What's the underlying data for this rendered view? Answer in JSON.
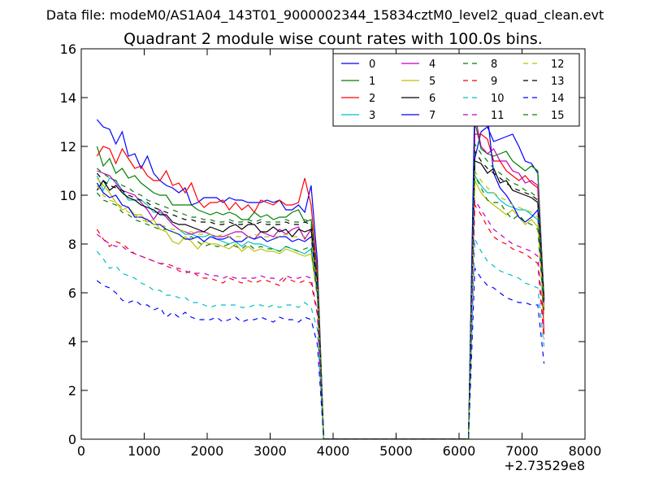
{
  "chart_data": {
    "type": "line",
    "suptitle": "Data file: modeM0/AS1A04_143T01_9000002344_15834cztM0_level2_quad_clean.evt",
    "title": "Quadrant 2 module wise count rates with 100.0s bins.",
    "xlabel": "",
    "ylabel": "",
    "x_offset_label": "+2.73529e8",
    "xlim": [
      0,
      8000
    ],
    "ylim": [
      0,
      16
    ],
    "xticks": [
      0,
      1000,
      2000,
      3000,
      4000,
      5000,
      6000,
      7000,
      8000
    ],
    "yticks": [
      0,
      2,
      4,
      6,
      8,
      10,
      12,
      14,
      16
    ],
    "xtick_labels": [
      "0",
      "1000",
      "2000",
      "3000",
      "4000",
      "5000",
      "6000",
      "7000",
      "8000"
    ],
    "ytick_labels": [
      "0",
      "2",
      "4",
      "6",
      "8",
      "10",
      "12",
      "14",
      "16"
    ],
    "grid": false,
    "legend_position": "top-right",
    "legend_columns": 4,
    "x_segments": {
      "seg1": [
        250,
        350,
        450,
        550,
        650,
        750,
        850,
        950,
        1050,
        1150,
        1250,
        1350,
        1450,
        1550,
        1650,
        1750,
        1850,
        1950,
        2050,
        2150,
        2250,
        2350,
        2450,
        2550,
        2650,
        2750,
        2850,
        2950,
        3050,
        3150,
        3250,
        3350,
        3450,
        3550,
        3650,
        3750
      ],
      "gap": [
        3850,
        6150
      ],
      "seg2": [
        6250,
        6350,
        6450,
        6550,
        6650,
        6750,
        6850,
        6950,
        7050,
        7150,
        7250,
        7350
      ]
    },
    "series": [
      {
        "name": "0",
        "color": "#0000ff",
        "style": "solid",
        "seg1": [
          13.1,
          12.8,
          12.7,
          12.1,
          12.6,
          11.6,
          11.7,
          11.1,
          11.6,
          10.9,
          10.6,
          10.4,
          10.3,
          10.1,
          10.3,
          9.6,
          9.7,
          9.9,
          9.9,
          9.9,
          9.7,
          9.9,
          9.8,
          9.8,
          9.7,
          9.7,
          9.7,
          9.8,
          9.7,
          9.8,
          9.4,
          9.4,
          9.6,
          9.3,
          10.4,
          7.3
        ],
        "seg2": [
          11.5,
          12.6,
          12.8,
          12.2,
          12.3,
          12.4,
          12.5,
          12.0,
          11.4,
          11.3,
          10.9,
          5.5
        ]
      },
      {
        "name": "1",
        "color": "#007f00",
        "style": "solid",
        "seg1": [
          12.0,
          11.2,
          11.5,
          10.9,
          11.1,
          10.7,
          10.8,
          10.5,
          10.3,
          10.1,
          10.0,
          10.0,
          9.6,
          9.6,
          9.6,
          9.6,
          9.4,
          9.3,
          9.2,
          9.3,
          9.2,
          9.3,
          9.2,
          9.0,
          9.0,
          9.3,
          9.1,
          9.2,
          9.0,
          9.1,
          9.1,
          9.3,
          9.4,
          8.9,
          9.0,
          7.0
        ],
        "seg2": [
          13.0,
          11.9,
          11.7,
          11.6,
          11.7,
          11.8,
          11.4,
          11.2,
          11.0,
          11.2,
          11.0,
          5.7
        ]
      },
      {
        "name": "2",
        "color": "#ff0000",
        "style": "solid",
        "seg1": [
          11.6,
          12.0,
          11.9,
          11.3,
          11.9,
          11.5,
          11.1,
          11.2,
          10.8,
          10.6,
          10.6,
          11.0,
          10.4,
          10.5,
          10.1,
          10.5,
          9.8,
          9.5,
          9.7,
          9.7,
          9.8,
          9.4,
          9.7,
          9.4,
          9.6,
          9.3,
          9.8,
          9.7,
          9.6,
          9.8,
          9.6,
          9.6,
          9.7,
          10.7,
          9.6,
          6.8
        ],
        "seg2": [
          12.5,
          12.5,
          12.3,
          11.4,
          11.4,
          11.0,
          10.8,
          10.6,
          10.8,
          10.5,
          10.3,
          4.3
        ]
      },
      {
        "name": "3",
        "color": "#00bfbf",
        "style": "solid",
        "seg1": [
          10.8,
          10.2,
          10.7,
          10.6,
          10.2,
          9.8,
          9.8,
          9.8,
          9.6,
          9.3,
          9.3,
          9.1,
          8.8,
          8.6,
          8.4,
          8.4,
          8.3,
          8.3,
          8.4,
          8.2,
          8.1,
          8.0,
          8.1,
          7.9,
          8.1,
          8.0,
          8.0,
          7.9,
          7.8,
          7.7,
          7.9,
          7.8,
          7.7,
          7.6,
          7.8,
          6.0
        ],
        "seg2": [
          10.8,
          10.4,
          10.1,
          10.1,
          9.8,
          9.6,
          9.5,
          9.4,
          9.4,
          9.2,
          9.0,
          5.3
        ]
      },
      {
        "name": "4",
        "color": "#bf00bf",
        "style": "solid",
        "seg1": [
          11.0,
          10.9,
          10.8,
          10.5,
          10.2,
          10.1,
          10.0,
          9.7,
          9.4,
          9.0,
          9.4,
          9.1,
          8.8,
          8.6,
          8.5,
          8.4,
          8.5,
          8.5,
          8.4,
          8.3,
          8.3,
          8.4,
          8.5,
          8.5,
          8.3,
          8.2,
          8.5,
          8.4,
          8.3,
          8.6,
          8.4,
          8.6,
          8.7,
          8.2,
          8.6,
          6.4
        ],
        "seg2": [
          13.3,
          12.0,
          11.7,
          11.9,
          11.4,
          11.4,
          11.0,
          10.9,
          10.5,
          10.6,
          10.4,
          5.8
        ]
      },
      {
        "name": "5",
        "color": "#bfbf00",
        "style": "solid",
        "seg1": [
          10.7,
          10.4,
          10.1,
          9.7,
          9.4,
          9.5,
          9.2,
          9.2,
          8.9,
          9.0,
          8.6,
          8.5,
          8.1,
          8.0,
          8.3,
          8.1,
          7.8,
          8.1,
          8.0,
          8.0,
          7.9,
          7.8,
          8.0,
          7.7,
          7.9,
          7.7,
          7.8,
          7.7,
          7.7,
          7.6,
          7.8,
          7.7,
          7.6,
          7.5,
          7.6,
          5.9
        ],
        "seg2": [
          10.6,
          10.1,
          9.8,
          9.6,
          9.4,
          9.2,
          9.4,
          9.1,
          8.8,
          9.0,
          8.7,
          5.1
        ]
      },
      {
        "name": "6",
        "color": "#000000",
        "style": "solid",
        "seg1": [
          10.2,
          10.6,
          10.2,
          10.4,
          10.1,
          9.9,
          9.8,
          9.6,
          9.5,
          9.4,
          9.2,
          9.2,
          8.9,
          8.8,
          8.8,
          8.7,
          8.6,
          8.5,
          8.7,
          8.6,
          8.5,
          8.7,
          8.8,
          8.6,
          8.8,
          8.8,
          8.5,
          8.5,
          8.7,
          8.5,
          8.6,
          8.3,
          8.6,
          8.5,
          8.6,
          6.3
        ],
        "seg2": [
          11.4,
          11.3,
          10.9,
          11.1,
          10.5,
          10.6,
          10.2,
          10.1,
          10.0,
          9.9,
          9.7,
          5.7
        ]
      },
      {
        "name": "7",
        "color": "#0000ff",
        "style": "solid",
        "seg1": [
          10.5,
          10.1,
          9.9,
          10.0,
          9.6,
          9.5,
          9.1,
          9.1,
          9.0,
          8.8,
          8.8,
          8.6,
          8.5,
          8.4,
          8.2,
          8.2,
          8.3,
          8.1,
          8.3,
          8.2,
          8.2,
          8.3,
          8.1,
          8.1,
          8.3,
          8.2,
          8.3,
          8.1,
          8.2,
          8.3,
          8.3,
          8.1,
          8.2,
          8.1,
          8.3,
          6.1
        ],
        "seg2": [
          14.0,
          13.5,
          13.3,
          10.9,
          10.3,
          10.0,
          9.6,
          9.1,
          8.9,
          9.1,
          9.4,
          5.4
        ]
      },
      {
        "name": "8",
        "color": "#007f00",
        "style": "dashed",
        "seg1": [
          10.1,
          9.8,
          9.7,
          9.6,
          9.3,
          9.2,
          9.0,
          8.9,
          8.8,
          8.7,
          8.6,
          8.6,
          8.5,
          8.4,
          8.2,
          8.3,
          8.1,
          7.9,
          8.0,
          7.9,
          7.9,
          8.0,
          7.9,
          7.8,
          8.0,
          7.8,
          7.9,
          7.8,
          7.8,
          7.7,
          7.9,
          7.8,
          7.7,
          7.8,
          7.9,
          5.8
        ],
        "seg2": [
          10.8,
          10.3,
          9.8,
          9.7,
          9.7,
          9.3,
          9.0,
          9.2,
          8.9,
          8.8,
          8.6,
          5.2
        ]
      },
      {
        "name": "9",
        "color": "#ff0000",
        "style": "dashed",
        "seg1": [
          8.6,
          8.2,
          7.9,
          8.1,
          8.0,
          7.8,
          7.6,
          7.5,
          7.4,
          7.3,
          7.2,
          7.2,
          7.1,
          6.9,
          6.8,
          6.9,
          6.7,
          6.6,
          6.6,
          6.5,
          6.4,
          6.6,
          6.5,
          6.4,
          6.5,
          6.4,
          6.5,
          6.5,
          6.4,
          6.3,
          6.6,
          6.5,
          6.4,
          6.5,
          6.4,
          5.1
        ],
        "seg2": [
          9.6,
          9.2,
          8.7,
          8.3,
          8.1,
          8.0,
          7.8,
          7.7,
          7.6,
          7.4,
          7.2,
          4.1
        ]
      },
      {
        "name": "10",
        "color": "#00bfbf",
        "style": "dashed",
        "seg1": [
          7.7,
          7.4,
          7.0,
          7.1,
          6.8,
          6.7,
          6.6,
          6.4,
          6.3,
          6.1,
          6.1,
          5.9,
          5.9,
          5.8,
          5.8,
          5.6,
          5.6,
          5.5,
          5.4,
          5.5,
          5.5,
          5.5,
          5.5,
          5.4,
          5.4,
          5.5,
          5.5,
          5.4,
          5.5,
          5.4,
          5.5,
          5.5,
          5.4,
          5.6,
          5.4,
          4.5
        ],
        "seg2": [
          8.2,
          7.7,
          7.3,
          7.1,
          6.9,
          6.8,
          6.7,
          6.6,
          6.4,
          6.3,
          6.2,
          3.8
        ]
      },
      {
        "name": "11",
        "color": "#bf00bf",
        "style": "dashed",
        "seg1": [
          8.4,
          8.2,
          8.0,
          7.9,
          7.9,
          7.7,
          7.6,
          7.5,
          7.4,
          7.3,
          7.2,
          7.1,
          7.0,
          7.0,
          6.9,
          6.8,
          6.8,
          6.8,
          6.7,
          6.7,
          6.6,
          6.7,
          6.6,
          6.6,
          6.6,
          6.6,
          6.7,
          6.6,
          6.6,
          6.5,
          6.7,
          6.6,
          6.6,
          6.7,
          6.6,
          5.2
        ],
        "seg2": [
          9.8,
          9.4,
          9.0,
          8.6,
          8.4,
          8.2,
          8.0,
          7.9,
          7.8,
          7.7,
          7.5,
          4.5
        ]
      },
      {
        "name": "12",
        "color": "#bfbf00",
        "style": "dashed",
        "seg1": [
          10.4,
          10.0,
          9.8,
          9.7,
          9.5,
          9.3,
          9.2,
          9.0,
          8.9,
          8.8,
          8.8,
          8.7,
          8.6,
          8.6,
          8.5,
          8.5,
          8.4,
          8.4,
          8.4,
          8.3,
          8.4,
          8.3,
          8.3,
          8.3,
          8.3,
          8.4,
          8.3,
          8.3,
          8.3,
          8.3,
          8.4,
          8.3,
          8.3,
          8.3,
          8.3,
          6.2
        ],
        "seg2": [
          11.0,
          10.6,
          10.3,
          10.1,
          9.9,
          9.8,
          9.6,
          9.5,
          9.4,
          9.3,
          9.1,
          5.4
        ]
      },
      {
        "name": "13",
        "color": "#000000",
        "style": "dashed",
        "seg1": [
          10.9,
          10.6,
          10.4,
          10.3,
          10.2,
          10.0,
          9.9,
          9.8,
          9.7,
          9.5,
          9.4,
          9.3,
          9.2,
          9.1,
          9.0,
          9.0,
          8.9,
          8.9,
          8.9,
          8.8,
          8.8,
          8.9,
          8.8,
          8.8,
          8.9,
          8.8,
          8.9,
          8.8,
          8.8,
          8.8,
          8.9,
          8.8,
          8.8,
          8.9,
          8.8,
          6.5
        ],
        "seg2": [
          11.8,
          11.4,
          11.1,
          10.9,
          10.7,
          10.5,
          10.3,
          10.2,
          10.1,
          10.0,
          9.8,
          5.7
        ]
      },
      {
        "name": "14",
        "color": "#0000ff",
        "style": "dashed",
        "seg1": [
          6.5,
          6.3,
          6.2,
          6.0,
          5.7,
          5.6,
          5.7,
          5.5,
          5.5,
          5.3,
          5.4,
          5.0,
          5.2,
          5.0,
          5.2,
          5.0,
          4.9,
          4.9,
          4.9,
          5.0,
          4.8,
          4.9,
          5.0,
          4.8,
          4.9,
          4.9,
          5.0,
          4.9,
          4.8,
          5.0,
          4.9,
          4.9,
          4.8,
          5.0,
          4.9,
          3.9
        ],
        "seg2": [
          7.0,
          6.6,
          6.3,
          6.2,
          6.0,
          5.8,
          5.7,
          5.6,
          5.6,
          5.5,
          5.5,
          3.1
        ]
      },
      {
        "name": "15",
        "color": "#007f00",
        "style": "dashed",
        "seg1": [
          11.1,
          10.9,
          10.7,
          10.6,
          10.4,
          10.3,
          10.1,
          10.0,
          9.8,
          9.7,
          9.6,
          9.5,
          9.4,
          9.3,
          9.2,
          9.1,
          9.1,
          9.0,
          9.0,
          8.9,
          8.9,
          9.0,
          8.9,
          8.9,
          9.0,
          8.9,
          9.0,
          8.9,
          8.9,
          8.9,
          9.0,
          8.9,
          8.9,
          9.0,
          8.9,
          6.6
        ],
        "seg2": [
          12.1,
          11.7,
          11.4,
          11.1,
          10.9,
          10.7,
          10.5,
          10.4,
          10.2,
          10.1,
          9.9,
          5.8
        ]
      }
    ]
  }
}
